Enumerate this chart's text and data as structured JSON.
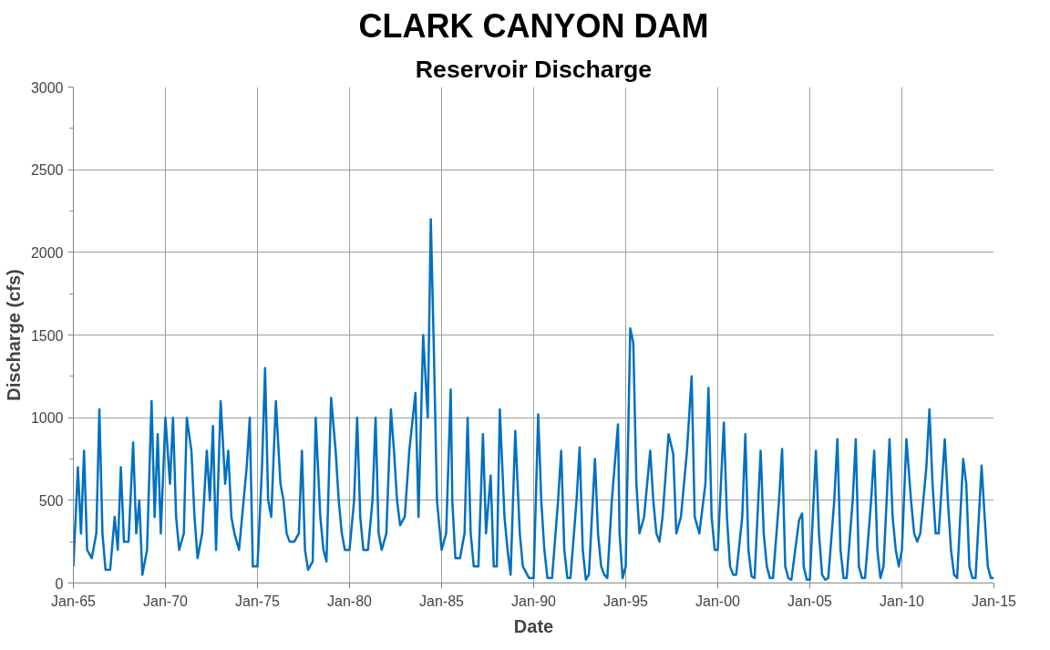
{
  "chart_data": {
    "type": "line",
    "title": "CLARK CANYON DAM",
    "subtitle": "Reservoir Discharge",
    "xlabel": "Date",
    "ylabel": "Discharge (cfs)",
    "x": [
      "1965-01",
      "1965-04",
      "1965-06",
      "1965-08",
      "1965-10",
      "1966-01",
      "1966-04",
      "1966-06",
      "1966-08",
      "1966-10",
      "1967-01",
      "1967-04",
      "1967-06",
      "1967-08",
      "1967-10",
      "1968-01",
      "1968-04",
      "1968-06",
      "1968-08",
      "1968-10",
      "1969-01",
      "1969-04",
      "1969-06",
      "1969-08",
      "1969-10",
      "1970-01",
      "1970-04",
      "1970-06",
      "1970-08",
      "1970-10",
      "1971-01",
      "1971-03",
      "1971-06",
      "1971-08",
      "1971-10",
      "1972-01",
      "1972-04",
      "1972-06",
      "1972-08",
      "1972-10",
      "1973-01",
      "1973-04",
      "1973-06",
      "1973-08",
      "1973-10",
      "1974-01",
      "1974-04",
      "1974-06",
      "1974-08",
      "1974-10",
      "1975-01",
      "1975-04",
      "1975-06",
      "1975-08",
      "1975-10",
      "1976-01",
      "1976-04",
      "1976-06",
      "1976-08",
      "1976-10",
      "1977-01",
      "1977-04",
      "1977-06",
      "1977-08",
      "1977-10",
      "1978-01",
      "1978-03",
      "1978-06",
      "1978-08",
      "1978-10",
      "1979-01",
      "1979-04",
      "1979-06",
      "1979-08",
      "1979-10",
      "1980-01",
      "1980-04",
      "1980-06",
      "1980-08",
      "1980-10",
      "1981-01",
      "1981-04",
      "1981-06",
      "1981-08",
      "1981-10",
      "1982-01",
      "1982-04",
      "1982-06",
      "1982-08",
      "1982-10",
      "1983-01",
      "1983-04",
      "1983-08",
      "1983-10",
      "1984-01",
      "1984-04",
      "1984-06",
      "1984-08",
      "1984-10",
      "1985-01",
      "1985-04",
      "1985-07",
      "1985-08",
      "1985-10",
      "1986-01",
      "1986-04",
      "1986-06",
      "1986-08",
      "1986-10",
      "1987-01",
      "1987-04",
      "1987-06",
      "1987-09",
      "1987-11",
      "1988-01",
      "1988-03",
      "1988-06",
      "1988-08",
      "1988-10",
      "1989-01",
      "1989-04",
      "1989-06",
      "1989-10",
      "1990-01",
      "1990-04",
      "1990-06",
      "1990-08",
      "1990-10",
      "1991-01",
      "1991-05",
      "1991-07",
      "1991-09",
      "1991-11",
      "1992-01",
      "1992-05",
      "1992-07",
      "1992-09",
      "1992-11",
      "1993-01",
      "1993-05",
      "1993-07",
      "1993-09",
      "1993-11",
      "1994-01",
      "1994-04",
      "1994-08",
      "1994-09",
      "1994-11",
      "1995-01",
      "1995-04",
      "1995-06",
      "1995-08",
      "1995-10",
      "1996-01",
      "1996-05",
      "1996-07",
      "1996-09",
      "1996-11",
      "1997-01",
      "1997-05",
      "1997-08",
      "1997-10",
      "1998-01",
      "1998-05",
      "1998-08",
      "1998-10",
      "1999-01",
      "1999-05",
      "1999-07",
      "1999-09",
      "1999-11",
      "2000-01",
      "2000-05",
      "2000-07",
      "2000-09",
      "2000-11",
      "2001-01",
      "2001-05",
      "2001-07",
      "2001-09",
      "2001-11",
      "2002-01",
      "2002-05",
      "2002-07",
      "2002-09",
      "2002-11",
      "2003-01",
      "2003-05",
      "2003-07",
      "2003-09",
      "2003-11",
      "2004-01",
      "2004-06",
      "2004-08",
      "2004-09",
      "2004-11",
      "2005-01",
      "2005-05",
      "2005-07",
      "2005-09",
      "2005-11",
      "2006-01",
      "2006-05",
      "2006-07",
      "2006-09",
      "2006-11",
      "2007-01",
      "2007-05",
      "2007-07",
      "2007-09",
      "2007-11",
      "2008-01",
      "2008-05",
      "2008-07",
      "2008-09",
      "2008-11",
      "2009-01",
      "2009-05",
      "2009-07",
      "2009-09",
      "2009-11",
      "2010-01",
      "2010-04",
      "2010-07",
      "2010-09",
      "2010-11",
      "2011-01",
      "2011-05",
      "2011-07",
      "2011-09",
      "2011-11",
      "2012-01",
      "2012-05",
      "2012-07",
      "2012-09",
      "2012-11",
      "2013-01",
      "2013-05",
      "2013-07",
      "2013-09",
      "2013-11",
      "2014-01",
      "2014-05",
      "2014-07",
      "2014-09",
      "2014-11",
      "2015-01"
    ],
    "series": [
      {
        "color": "#0070c0",
        "values": [
          100,
          700,
          300,
          800,
          200,
          150,
          300,
          1050,
          300,
          80,
          80,
          400,
          200,
          700,
          250,
          250,
          850,
          300,
          500,
          50,
          200,
          1100,
          400,
          900,
          300,
          1000,
          600,
          1000,
          400,
          200,
          300,
          1000,
          800,
          400,
          150,
          300,
          800,
          500,
          950,
          200,
          1100,
          600,
          800,
          400,
          300,
          200,
          500,
          700,
          1000,
          100,
          100,
          700,
          1300,
          500,
          400,
          1100,
          600,
          500,
          300,
          250,
          250,
          300,
          800,
          200,
          80,
          130,
          1000,
          400,
          200,
          130,
          1120,
          800,
          500,
          300,
          200,
          200,
          500,
          1000,
          400,
          200,
          200,
          500,
          1000,
          300,
          200,
          300,
          1050,
          800,
          500,
          350,
          400,
          800,
          1150,
          400,
          1500,
          1000,
          2200,
          1400,
          500,
          200,
          300,
          1170,
          500,
          150,
          150,
          300,
          1000,
          300,
          100,
          100,
          900,
          300,
          650,
          100,
          100,
          1050,
          400,
          200,
          50,
          920,
          300,
          100,
          30,
          30,
          1020,
          500,
          200,
          30,
          30,
          500,
          800,
          200,
          30,
          30,
          500,
          820,
          200,
          20,
          50,
          750,
          300,
          100,
          50,
          30,
          500,
          960,
          300,
          30,
          100,
          1540,
          1450,
          600,
          300,
          400,
          800,
          500,
          300,
          250,
          400,
          900,
          780,
          300,
          400,
          800,
          1250,
          400,
          300,
          600,
          1180,
          400,
          200,
          200,
          970,
          400,
          100,
          50,
          50,
          400,
          900,
          200,
          40,
          30,
          800,
          300,
          100,
          30,
          30,
          500,
          810,
          100,
          30,
          20,
          380,
          420,
          100,
          20,
          20,
          800,
          300,
          50,
          20,
          30,
          500,
          870,
          200,
          30,
          30,
          500,
          870,
          100,
          30,
          30,
          500,
          800,
          200,
          30,
          100,
          870,
          400,
          200,
          100,
          200,
          870,
          500,
          300,
          250,
          300,
          700,
          1050,
          600,
          300,
          300,
          870,
          500,
          200,
          50,
          30,
          750,
          600,
          100,
          30,
          30,
          710,
          400,
          100,
          30,
          30
        ]
      }
    ],
    "xlim": [
      "1965-01",
      "2015-01"
    ],
    "xticks": [
      {
        "value": "1965-01",
        "label": "Jan-65"
      },
      {
        "value": "1970-01",
        "label": "Jan-70"
      },
      {
        "value": "1975-01",
        "label": "Jan-75"
      },
      {
        "value": "1980-01",
        "label": "Jan-80"
      },
      {
        "value": "1985-01",
        "label": "Jan-85"
      },
      {
        "value": "1990-01",
        "label": "Jan-90"
      },
      {
        "value": "1995-01",
        "label": "Jan-95"
      },
      {
        "value": "2000-01",
        "label": "Jan-00"
      },
      {
        "value": "2005-01",
        "label": "Jan-05"
      },
      {
        "value": "2010-01",
        "label": "Jan-10"
      },
      {
        "value": "2015-01",
        "label": "Jan-15"
      }
    ],
    "ylim": [
      0,
      3000
    ],
    "yticks": [
      0,
      {
        "value": 250,
        "label": null
      },
      500,
      {
        "value": 750,
        "label": null
      },
      1000,
      {
        "value": 1250,
        "label": null
      },
      1500,
      {
        "value": 1750,
        "label": null
      },
      2000,
      {
        "value": 2250,
        "label": null
      },
      2500,
      {
        "value": 2750,
        "label": null
      },
      3000
    ],
    "grid": true,
    "marker": "none",
    "line_style": "solid"
  }
}
